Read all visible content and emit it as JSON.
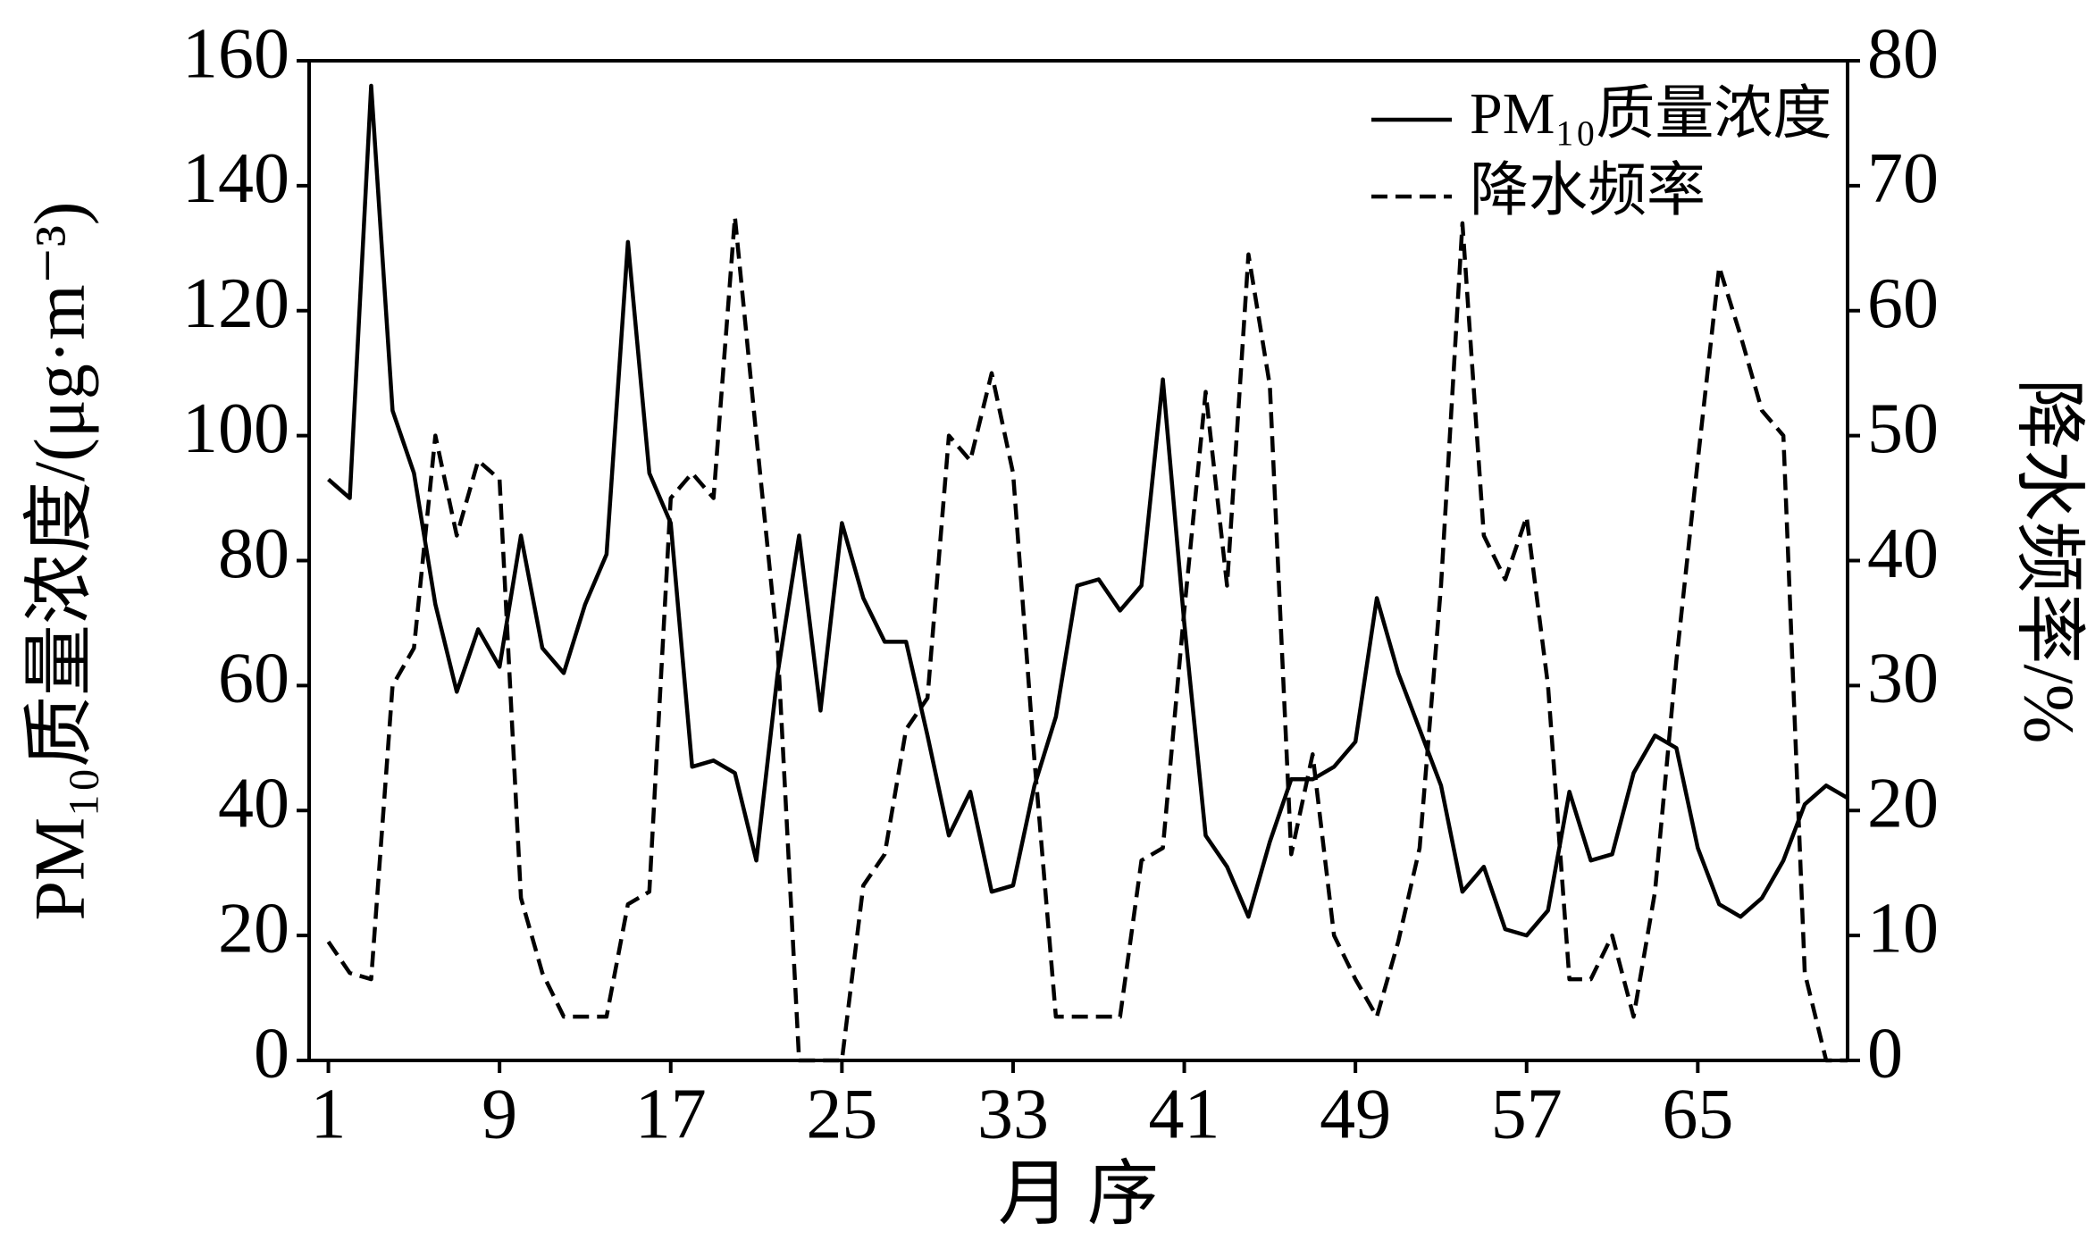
{
  "chart_data": {
    "type": "line",
    "x_label": "月  序",
    "y_label": "PM₁₀质量浓度/(μg·m⁻³)",
    "y2_label": "降水频率/%",
    "x": [
      1,
      2,
      3,
      4,
      5,
      6,
      7,
      8,
      9,
      10,
      11,
      12,
      13,
      14,
      15,
      16,
      17,
      18,
      19,
      20,
      21,
      22,
      23,
      24,
      25,
      26,
      27,
      28,
      29,
      30,
      31,
      32,
      33,
      34,
      35,
      36,
      37,
      38,
      39,
      40,
      41,
      42,
      43,
      44,
      45,
      46,
      47,
      48,
      49,
      50,
      51,
      52,
      53,
      54,
      55,
      56,
      57,
      58,
      59,
      60,
      61,
      62,
      63,
      64,
      65,
      66,
      67,
      68,
      69,
      70,
      71,
      72
    ],
    "xlim": [
      0.1,
      72
    ],
    "xticks": [
      1,
      9,
      17,
      25,
      33,
      41,
      49,
      57,
      65
    ],
    "ylim": [
      0,
      160
    ],
    "yticks": [
      0,
      20,
      40,
      60,
      80,
      100,
      120,
      140,
      160
    ],
    "y2lim": [
      0,
      80
    ],
    "y2ticks": [
      0,
      10,
      20,
      30,
      40,
      50,
      60,
      70,
      80
    ],
    "legend": "upper right",
    "series": [
      {
        "name": "PM₁₀质量浓度",
        "color": "#000000",
        "dash": "solid",
        "values": [
          93,
          90,
          156,
          104,
          94,
          73,
          59,
          69,
          63,
          84,
          66,
          62,
          73,
          81,
          131,
          94,
          86,
          47,
          48,
          46,
          32,
          62,
          84,
          56,
          86,
          74,
          67,
          67,
          52,
          36,
          43,
          27,
          28,
          44,
          55,
          76,
          77,
          72,
          76,
          109,
          70,
          36,
          31,
          23,
          35,
          45,
          45,
          47,
          51,
          74,
          62,
          53,
          44,
          27,
          31,
          21,
          20,
          24,
          43,
          32,
          33,
          46,
          52,
          50,
          34,
          25,
          23,
          26,
          32,
          41,
          44,
          42
        ]
      },
      {
        "name": "降水频率",
        "color": "#000000",
        "dash": "dashed",
        "axis": "y2",
        "values": [
          9.5,
          7,
          6.5,
          30,
          33,
          50,
          42,
          48,
          46.5,
          13,
          7,
          3.5,
          3.5,
          3.5,
          12.5,
          13.5,
          45,
          47,
          45,
          67.5,
          50,
          33,
          0,
          0,
          0,
          14,
          16.5,
          26.5,
          29,
          50,
          48,
          55,
          47,
          24,
          3.5,
          3.5,
          3.5,
          3.5,
          16,
          17,
          36,
          53.5,
          38,
          64.5,
          54,
          16.5,
          24.5,
          10,
          6.5,
          3.5,
          9.5,
          17,
          38,
          67,
          42,
          38.5,
          43.5,
          30,
          6.5,
          6.5,
          10,
          3.5,
          13.5,
          32,
          48,
          63.5,
          58,
          52,
          50,
          7,
          0,
          0
        ]
      }
    ]
  }
}
